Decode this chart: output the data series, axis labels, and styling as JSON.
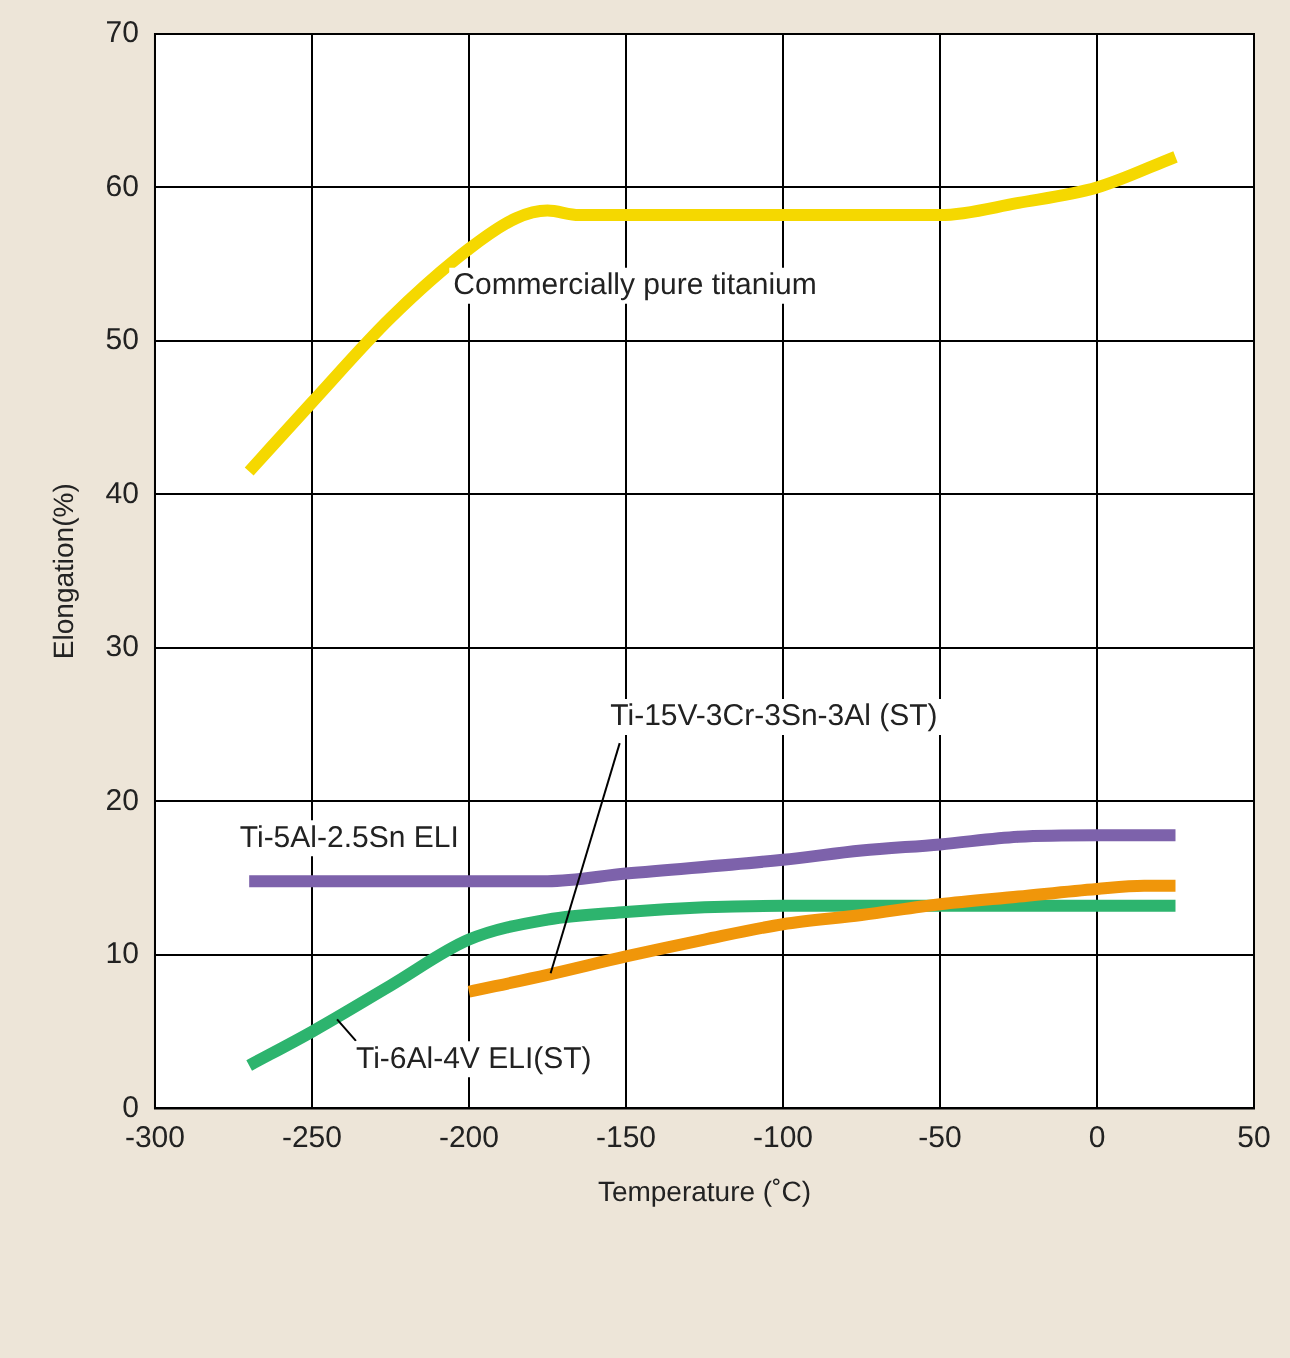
{
  "chart_data": {
    "type": "line",
    "xlabel": "Temperature (˚C)",
    "ylabel": "Elongation(%)",
    "xlim": [
      -300,
      50
    ],
    "xticks": [
      -300,
      -250,
      -200,
      -150,
      -100,
      -50,
      0,
      50
    ],
    "ylim": [
      0,
      70
    ],
    "yticks": [
      0,
      10,
      20,
      30,
      40,
      50,
      60,
      70
    ],
    "grid": true,
    "legend": false,
    "marker": "none",
    "line_style": "solid",
    "series": [
      {
        "name": "Commercially pure titanium",
        "color": "#f5d800",
        "x": [
          -270,
          -250,
          -225,
          -200,
          -185,
          -175,
          -165,
          -150,
          -100,
          -50,
          -25,
          0,
          25
        ],
        "values": [
          41.5,
          46,
          51.5,
          56,
          58,
          58.5,
          58.2,
          58.2,
          58.2,
          58.2,
          59,
          60,
          62
        ]
      },
      {
        "name": "Ti-5Al-2.5Sn ELI",
        "color": "#7d62ab",
        "x": [
          -270,
          -175,
          -150,
          -100,
          -75,
          -50,
          -25,
          0,
          25
        ],
        "values": [
          14.8,
          14.8,
          15.3,
          16.2,
          16.8,
          17.2,
          17.7,
          17.8,
          17.8
        ]
      },
      {
        "name": "Ti-15V-3Cr-3Sn-3Al (ST)",
        "color": "#f0960a",
        "x": [
          -200,
          -175,
          -150,
          -125,
          -100,
          -75,
          -50,
          -25,
          0,
          15,
          25
        ],
        "values": [
          7.6,
          8.7,
          9.9,
          11,
          12,
          12.6,
          13.3,
          13.8,
          14.3,
          14.5,
          14.5
        ]
      },
      {
        "name": "Ti-6Al-4V ELI(ST)",
        "color": "#2db46e",
        "x": [
          -270,
          -250,
          -225,
          -200,
          -175,
          -150,
          -125,
          -100,
          25
        ],
        "values": [
          2.8,
          5,
          8,
          11,
          12.3,
          12.8,
          13.1,
          13.2,
          13.2
        ]
      }
    ]
  }
}
